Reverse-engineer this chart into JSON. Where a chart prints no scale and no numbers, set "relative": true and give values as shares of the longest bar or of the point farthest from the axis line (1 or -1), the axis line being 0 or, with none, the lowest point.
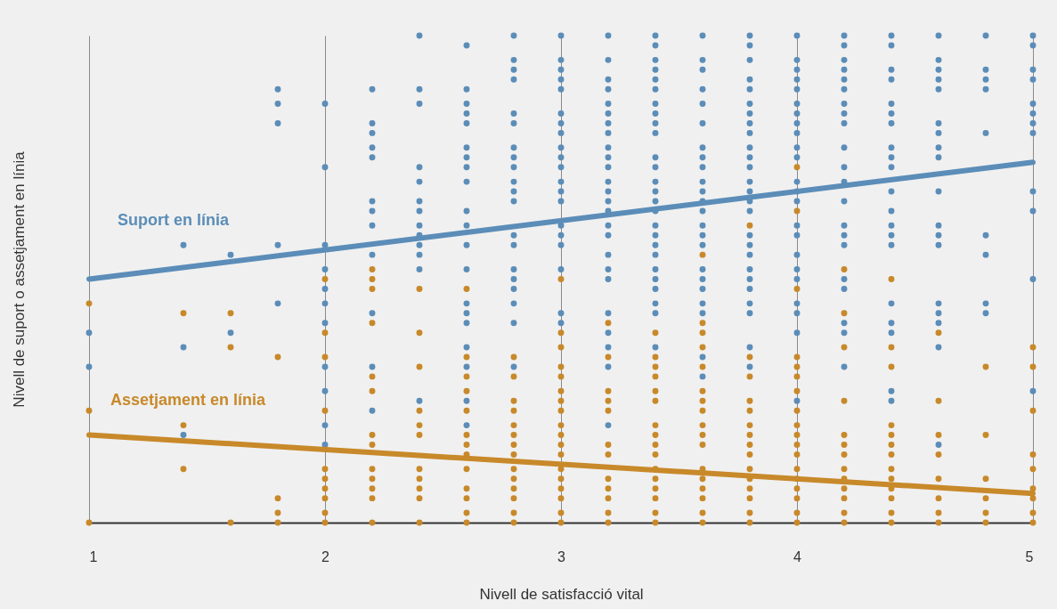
{
  "chart_data": {
    "type": "scatter",
    "xlabel": "Nivell de satisfacció vital",
    "ylabel": "Nivell de suport o assetjament en línia",
    "relative": true,
    "xlim": [
      1,
      5
    ],
    "xticks": [
      1,
      2,
      3,
      4,
      5
    ],
    "grid": "x",
    "tick_labels": "x",
    "series": [
      {
        "name": "Suport en línia",
        "color": "#5b8db8",
        "marker": "circle",
        "x": [
          1,
          1,
          1.4,
          1.4,
          1.4,
          1.6,
          1.6,
          1.8,
          1.8,
          1.8,
          1.8,
          1.8,
          2,
          2,
          2,
          2,
          2,
          2,
          2,
          2,
          2,
          2,
          2,
          2.2,
          2.2,
          2.2,
          2.2,
          2.2,
          2.2,
          2.2,
          2.2,
          2.2,
          2.2,
          2.2,
          2.2,
          2.4,
          2.4,
          2.4,
          2.4,
          2.4,
          2.4,
          2.4,
          2.4,
          2.4,
          2.4,
          2.4,
          2.4,
          2.4,
          2.6,
          2.6,
          2.6,
          2.6,
          2.6,
          2.6,
          2.6,
          2.6,
          2.6,
          2.6,
          2.6,
          2.6,
          2.6,
          2.6,
          2.6,
          2.6,
          2.6,
          2.6,
          2.6,
          2.6,
          2.8,
          2.8,
          2.8,
          2.8,
          2.8,
          2.8,
          2.8,
          2.8,
          2.8,
          2.8,
          2.8,
          2.8,
          2.8,
          2.8,
          2.8,
          2.8,
          2.8,
          2.8,
          2.8,
          2.8,
          3,
          3,
          3,
          3,
          3,
          3,
          3,
          3,
          3,
          3,
          3,
          3,
          3,
          3,
          3,
          3,
          3,
          3,
          3,
          3,
          3.2,
          3.2,
          3.2,
          3.2,
          3.2,
          3.2,
          3.2,
          3.2,
          3.2,
          3.2,
          3.2,
          3.2,
          3.2,
          3.2,
          3.2,
          3.2,
          3.2,
          3.2,
          3.2,
          3.2,
          3.2,
          3.2,
          3.2,
          3.2,
          3.2,
          3.4,
          3.4,
          3.4,
          3.4,
          3.4,
          3.4,
          3.4,
          3.4,
          3.4,
          3.4,
          3.4,
          3.4,
          3.4,
          3.4,
          3.4,
          3.4,
          3.4,
          3.4,
          3.4,
          3.4,
          3.4,
          3.4,
          3.4,
          3.4,
          3.4,
          3.4,
          3.6,
          3.6,
          3.6,
          3.6,
          3.6,
          3.6,
          3.6,
          3.6,
          3.6,
          3.6,
          3.6,
          3.6,
          3.6,
          3.6,
          3.6,
          3.6,
          3.6,
          3.6,
          3.6,
          3.6,
          3.6,
          3.6,
          3.6,
          3.8,
          3.8,
          3.8,
          3.8,
          3.8,
          3.8,
          3.8,
          3.8,
          3.8,
          3.8,
          3.8,
          3.8,
          3.8,
          3.8,
          3.8,
          3.8,
          3.8,
          3.8,
          3.8,
          3.8,
          3.8,
          3.8,
          3.8,
          3.8,
          3.8,
          3.8,
          4,
          4,
          4,
          4,
          4,
          4,
          4,
          4,
          4,
          4,
          4,
          4,
          4,
          4,
          4,
          4,
          4,
          4,
          4,
          4,
          4,
          4,
          4,
          4.2,
          4.2,
          4.2,
          4.2,
          4.2,
          4.2,
          4.2,
          4.2,
          4.2,
          4.2,
          4.2,
          4.2,
          4.2,
          4.2,
          4.2,
          4.2,
          4.2,
          4.2,
          4.2,
          4.2,
          4.2,
          4.4,
          4.4,
          4.4,
          4.4,
          4.4,
          4.4,
          4.4,
          4.4,
          4.4,
          4.4,
          4.4,
          4.4,
          4.4,
          4.4,
          4.4,
          4.4,
          4.4,
          4.4,
          4.4,
          4.4,
          4.6,
          4.6,
          4.6,
          4.6,
          4.6,
          4.6,
          4.6,
          4.6,
          4.6,
          4.6,
          4.6,
          4.6,
          4.6,
          4.6,
          4.6,
          4.6,
          4.6,
          4.6,
          4.8,
          4.8,
          4.8,
          4.8,
          4.8,
          4.8,
          4.8,
          4.8,
          4.8,
          5,
          5,
          5,
          5,
          5,
          5,
          5,
          5,
          5,
          5,
          5,
          5
        ],
        "values": [
          0.39,
          0.32,
          0.57,
          0.36,
          0.18,
          0.55,
          0.39,
          0.89,
          0.86,
          0.82,
          0.57,
          0.45,
          0.86,
          0.73,
          0.57,
          0.52,
          0.48,
          0.45,
          0.41,
          0.32,
          0.27,
          0.2,
          0.16,
          0.89,
          0.82,
          0.8,
          0.77,
          0.75,
          0.66,
          0.64,
          0.61,
          0.55,
          0.43,
          0.32,
          0.23,
          1,
          0.89,
          0.86,
          0.73,
          0.7,
          0.66,
          0.64,
          0.61,
          0.59,
          0.57,
          0.55,
          0.52,
          0.25,
          0.98,
          0.89,
          0.86,
          0.84,
          0.82,
          0.77,
          0.75,
          0.73,
          0.7,
          0.64,
          0.61,
          0.57,
          0.52,
          0.45,
          0.43,
          0.41,
          0.36,
          0.32,
          0.25,
          0.2,
          1,
          0.95,
          0.93,
          0.91,
          0.84,
          0.82,
          0.77,
          0.75,
          0.73,
          0.7,
          0.68,
          0.66,
          0.59,
          0.57,
          0.52,
          0.5,
          0.48,
          0.45,
          0.41,
          0.32,
          1,
          0.95,
          0.93,
          0.91,
          0.89,
          0.84,
          0.82,
          0.8,
          0.77,
          0.75,
          0.73,
          0.7,
          0.68,
          0.66,
          0.61,
          0.59,
          0.57,
          0.52,
          0.43,
          0.41,
          1,
          0.95,
          0.91,
          0.89,
          0.86,
          0.84,
          0.82,
          0.8,
          0.77,
          0.75,
          0.73,
          0.7,
          0.68,
          0.66,
          0.64,
          0.61,
          0.59,
          0.55,
          0.52,
          0.5,
          0.43,
          0.39,
          0.36,
          0.32,
          0.2,
          1,
          0.98,
          0.95,
          0.93,
          0.91,
          0.89,
          0.86,
          0.84,
          0.82,
          0.8,
          0.75,
          0.73,
          0.7,
          0.68,
          0.66,
          0.64,
          0.61,
          0.59,
          0.57,
          0.55,
          0.52,
          0.5,
          0.48,
          0.45,
          0.43,
          0.36,
          1,
          0.95,
          0.93,
          0.89,
          0.86,
          0.82,
          0.77,
          0.75,
          0.73,
          0.7,
          0.68,
          0.66,
          0.64,
          0.61,
          0.59,
          0.57,
          0.52,
          0.5,
          0.48,
          0.45,
          0.43,
          0.34,
          0.3,
          1,
          0.98,
          0.95,
          0.91,
          0.89,
          0.86,
          0.84,
          0.82,
          0.8,
          0.77,
          0.75,
          0.73,
          0.7,
          0.68,
          0.66,
          0.64,
          0.59,
          0.57,
          0.55,
          0.52,
          0.5,
          0.48,
          0.45,
          0.43,
          0.36,
          0.32,
          1,
          0.95,
          0.93,
          0.91,
          0.89,
          0.86,
          0.84,
          0.82,
          0.8,
          0.77,
          0.75,
          0.7,
          0.68,
          0.66,
          0.61,
          0.59,
          0.55,
          0.52,
          0.5,
          0.45,
          0.43,
          0.39,
          0.25,
          1,
          0.98,
          0.95,
          0.93,
          0.91,
          0.89,
          0.86,
          0.84,
          0.82,
          0.77,
          0.73,
          0.7,
          0.66,
          0.61,
          0.59,
          0.57,
          0.5,
          0.48,
          0.41,
          0.39,
          0.32,
          1,
          0.98,
          0.93,
          0.91,
          0.86,
          0.84,
          0.82,
          0.77,
          0.75,
          0.73,
          0.68,
          0.64,
          0.61,
          0.59,
          0.57,
          0.45,
          0.41,
          0.39,
          0.27,
          0.25,
          1,
          0.95,
          0.93,
          0.91,
          0.89,
          0.82,
          0.8,
          0.77,
          0.75,
          0.68,
          0.61,
          0.59,
          0.57,
          0.45,
          0.43,
          0.41,
          0.36,
          0.16,
          1,
          0.93,
          0.91,
          0.89,
          0.8,
          0.59,
          0.55,
          0.45,
          0.43,
          1,
          0.98,
          0.93,
          0.91,
          0.86,
          0.84,
          0.82,
          0.8,
          0.68,
          0.64,
          0.5,
          0.27
        ]
      },
      {
        "name": "Assetjament en línia",
        "color": "#c8892a",
        "marker": "circle",
        "x": [
          1,
          1,
          1,
          1.4,
          1.4,
          1.4,
          1.6,
          1.6,
          1.6,
          1.8,
          1.8,
          1.8,
          1.8,
          2,
          2,
          2,
          2,
          2,
          2,
          2,
          2,
          2,
          2,
          2.2,
          2.2,
          2.2,
          2.2,
          2.2,
          2.2,
          2.2,
          2.2,
          2.2,
          2.2,
          2.2,
          2.2,
          2.2,
          2.4,
          2.4,
          2.4,
          2.4,
          2.4,
          2.4,
          2.4,
          2.4,
          2.4,
          2.4,
          2.4,
          2.6,
          2.6,
          2.6,
          2.6,
          2.6,
          2.6,
          2.6,
          2.6,
          2.6,
          2.6,
          2.6,
          2.6,
          2.6,
          2.8,
          2.8,
          2.8,
          2.8,
          2.8,
          2.8,
          2.8,
          2.8,
          2.8,
          2.8,
          2.8,
          2.8,
          2.8,
          2.8,
          3,
          3,
          3,
          3,
          3,
          3,
          3,
          3,
          3,
          3,
          3,
          3,
          3,
          3,
          3,
          3,
          3,
          3,
          3.2,
          3.2,
          3.2,
          3.2,
          3.2,
          3.2,
          3.2,
          3.2,
          3.2,
          3.2,
          3.2,
          3.2,
          3.4,
          3.4,
          3.4,
          3.4,
          3.4,
          3.4,
          3.4,
          3.4,
          3.4,
          3.4,
          3.4,
          3.4,
          3.4,
          3.4,
          3.4,
          3.4,
          3.6,
          3.6,
          3.6,
          3.6,
          3.6,
          3.6,
          3.6,
          3.6,
          3.6,
          3.6,
          3.6,
          3.6,
          3.6,
          3.6,
          3.6,
          3.6,
          3.6,
          3.8,
          3.8,
          3.8,
          3.8,
          3.8,
          3.8,
          3.8,
          3.8,
          3.8,
          3.8,
          3.8,
          3.8,
          3.8,
          3.8,
          3.8,
          4,
          4,
          4,
          4,
          4,
          4,
          4,
          4,
          4,
          4,
          4,
          4,
          4,
          4,
          4,
          4,
          4,
          4,
          4.2,
          4.2,
          4.2,
          4.2,
          4.2,
          4.2,
          4.2,
          4.2,
          4.2,
          4.2,
          4.2,
          4.2,
          4.2,
          4.4,
          4.4,
          4.4,
          4.4,
          4.4,
          4.4,
          4.4,
          4.4,
          4.4,
          4.4,
          4.4,
          4.4,
          4.4,
          4.6,
          4.6,
          4.6,
          4.6,
          4.6,
          4.6,
          4.6,
          4.6,
          4.8,
          4.8,
          4.8,
          4.8,
          4.8,
          4.8,
          5,
          5,
          5,
          5,
          5,
          5,
          5,
          5,
          5
        ],
        "values": [
          0.45,
          0.23,
          0,
          0.43,
          0.2,
          0.11,
          0.43,
          0.36,
          0,
          0.34,
          0.05,
          0.02,
          0,
          0.5,
          0.39,
          0.34,
          0.23,
          0.11,
          0.09,
          0.07,
          0.05,
          0.02,
          0,
          0.52,
          0.5,
          0.48,
          0.41,
          0.3,
          0.27,
          0.18,
          0.16,
          0.11,
          0.09,
          0.07,
          0.05,
          0,
          0.48,
          0.39,
          0.32,
          0.23,
          0.2,
          0.18,
          0.11,
          0.09,
          0.07,
          0.05,
          0,
          0.48,
          0.34,
          0.3,
          0.27,
          0.23,
          0.18,
          0.16,
          0.14,
          0.11,
          0.07,
          0.05,
          0.02,
          0,
          0.34,
          0.3,
          0.25,
          0.23,
          0.2,
          0.18,
          0.16,
          0.14,
          0.11,
          0.09,
          0.07,
          0.05,
          0.02,
          0,
          0.5,
          0.39,
          0.36,
          0.32,
          0.3,
          0.27,
          0.25,
          0.23,
          0.2,
          0.18,
          0.16,
          0.14,
          0.11,
          0.09,
          0.07,
          0.05,
          0.02,
          0,
          0.41,
          0.34,
          0.27,
          0.25,
          0.23,
          0.16,
          0.14,
          0.09,
          0.07,
          0.05,
          0.02,
          0,
          0.39,
          0.34,
          0.32,
          0.3,
          0.27,
          0.25,
          0.2,
          0.18,
          0.16,
          0.14,
          0.11,
          0.09,
          0.07,
          0.05,
          0.02,
          0,
          0.55,
          0.41,
          0.39,
          0.36,
          0.32,
          0.27,
          0.25,
          0.23,
          0.2,
          0.18,
          0.16,
          0.11,
          0.09,
          0.07,
          0.05,
          0.02,
          0,
          0.61,
          0.34,
          0.3,
          0.25,
          0.23,
          0.2,
          0.18,
          0.16,
          0.14,
          0.11,
          0.09,
          0.07,
          0.05,
          0.02,
          0,
          0.73,
          0.64,
          0.48,
          0.34,
          0.32,
          0.3,
          0.27,
          0.23,
          0.2,
          0.18,
          0.16,
          0.14,
          0.11,
          0.09,
          0.07,
          0.05,
          0.02,
          0,
          0.52,
          0.43,
          0.36,
          0.25,
          0.18,
          0.16,
          0.14,
          0.11,
          0.09,
          0.07,
          0.05,
          0.02,
          0,
          0.5,
          0.36,
          0.32,
          0.2,
          0.18,
          0.16,
          0.14,
          0.11,
          0.09,
          0.07,
          0.05,
          0.02,
          0,
          0.39,
          0.25,
          0.18,
          0.14,
          0.09,
          0.05,
          0.02,
          0,
          0.32,
          0.18,
          0.09,
          0.05,
          0.02,
          0,
          0.36,
          0.32,
          0.23,
          0.14,
          0.11,
          0.07,
          0.05,
          0.02,
          0
        ]
      },
      {
        "color": "#5b8db8",
        "type": "line",
        "marker": "none",
        "x": [
          1,
          5
        ],
        "values": [
          0.5,
          0.74
        ]
      },
      {
        "color": "#c8892a",
        "type": "line",
        "marker": "none",
        "x": [
          1,
          5
        ],
        "values": [
          0.18,
          0.06
        ]
      }
    ]
  }
}
